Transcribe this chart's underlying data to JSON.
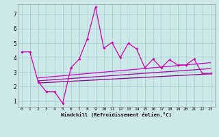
{
  "bg_color": "#cce8e8",
  "grid_color": "#aad4d4",
  "line_color_main": "#cc00aa",
  "line_color_t1": "#880088",
  "line_color_t2": "#aa00aa",
  "line_color_t3": "#cc00cc",
  "xlim": [
    -0.5,
    23.5
  ],
  "ylim": [
    0.6,
    7.7
  ],
  "xticks": [
    0,
    1,
    2,
    3,
    4,
    5,
    6,
    7,
    8,
    9,
    10,
    11,
    12,
    13,
    14,
    15,
    16,
    17,
    18,
    19,
    20,
    21,
    22,
    23
  ],
  "yticks": [
    1,
    2,
    3,
    4,
    5,
    6,
    7
  ],
  "xlabel": "Windchill (Refroidissement éolien,°C)",
  "main_x": [
    0,
    1,
    2,
    3,
    4,
    5,
    6,
    7,
    8,
    9,
    10,
    11,
    12,
    13,
    14,
    15,
    16,
    17,
    18,
    19,
    20,
    21,
    22,
    23
  ],
  "main_y": [
    4.4,
    4.4,
    2.35,
    1.65,
    1.65,
    0.85,
    3.3,
    3.9,
    5.3,
    7.5,
    4.65,
    5.05,
    4.0,
    5.0,
    4.6,
    3.3,
    3.9,
    3.3,
    3.85,
    3.5,
    3.5,
    3.9,
    2.9,
    2.9
  ],
  "t1_x": [
    2,
    3,
    4,
    5,
    6,
    7,
    8,
    9,
    10,
    11,
    12,
    13,
    14,
    15,
    16,
    17,
    18,
    19,
    20,
    21,
    22,
    23
  ],
  "t1_y": [
    2.25,
    2.28,
    2.31,
    2.34,
    2.37,
    2.4,
    2.43,
    2.46,
    2.49,
    2.52,
    2.55,
    2.58,
    2.61,
    2.64,
    2.67,
    2.7,
    2.73,
    2.76,
    2.79,
    2.82,
    2.85,
    2.88
  ],
  "t2_x": [
    2,
    3,
    4,
    5,
    6,
    7,
    8,
    9,
    10,
    11,
    12,
    13,
    14,
    15,
    16,
    17,
    18,
    19,
    20,
    21,
    22,
    23
  ],
  "t2_y": [
    2.4,
    2.44,
    2.48,
    2.52,
    2.56,
    2.6,
    2.64,
    2.68,
    2.72,
    2.76,
    2.8,
    2.84,
    2.88,
    2.92,
    2.96,
    3.0,
    3.04,
    3.08,
    3.12,
    3.16,
    3.2,
    3.24
  ],
  "t3_x": [
    2,
    3,
    4,
    5,
    6,
    7,
    8,
    9,
    10,
    11,
    12,
    13,
    14,
    15,
    16,
    17,
    18,
    19,
    20,
    21,
    22,
    23
  ],
  "t3_y": [
    2.6,
    2.65,
    2.7,
    2.75,
    2.8,
    2.85,
    2.9,
    2.95,
    3.0,
    3.05,
    3.1,
    3.15,
    3.2,
    3.25,
    3.3,
    3.35,
    3.4,
    3.45,
    3.5,
    3.55,
    3.6,
    3.65
  ]
}
